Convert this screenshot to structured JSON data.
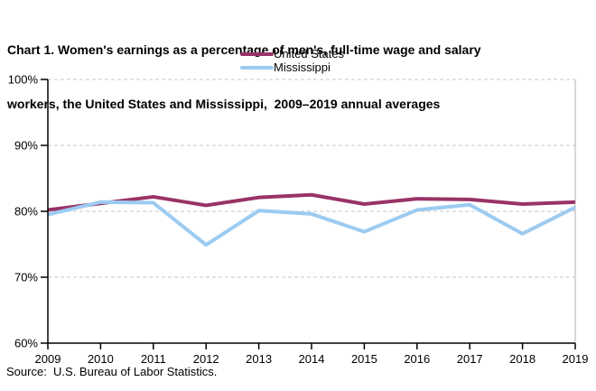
{
  "title": {
    "lines": [
      "Chart 1. Women's earnings as a percentage of men's, full-time wage and salary",
      "workers, the United States and Mississippi,  2009–2019 annual averages"
    ]
  },
  "source": "Source:  U.S. Bureau of Labor Statistics.",
  "colors": {
    "united_states_line": "#993366",
    "mississippi_line": "#9CCBF1",
    "gridline": "#C9C9C9",
    "axis": "#000000",
    "plot_right_border": "#B3B3B3",
    "text": "#000000"
  },
  "chart_data": {
    "type": "line",
    "title": "Chart 1. Women's earnings as a percentage of men's, full-time wage and salary workers, the United States and Mississippi, 2009–2019 annual averages",
    "x": [
      2009,
      2010,
      2011,
      2012,
      2013,
      2014,
      2015,
      2016,
      2017,
      2018,
      2019
    ],
    "xtick_labels": [
      "2009",
      "2010",
      "2011",
      "2012",
      "2013",
      "2014",
      "2015",
      "2016",
      "2017",
      "2018",
      "2019"
    ],
    "series": [
      {
        "name": "United States",
        "color": "#993366",
        "values": [
          80.2,
          81.2,
          82.2,
          80.9,
          82.1,
          82.5,
          81.1,
          81.9,
          81.8,
          81.1,
          81.4
        ]
      },
      {
        "name": "Mississippi",
        "color": "#9CCBF1",
        "values": [
          79.5,
          81.4,
          81.3,
          74.9,
          80.1,
          79.6,
          76.9,
          80.2,
          81.0,
          76.6,
          80.6
        ]
      }
    ],
    "xlabel": "",
    "ylabel": "",
    "ylim": [
      60,
      100
    ],
    "yticks": [
      60,
      70,
      80,
      90,
      100
    ],
    "ytick_labels": [
      "60%",
      "70%",
      "80%",
      "90%",
      "100%"
    ],
    "grid": "horizontal-dashed",
    "legend_position": "top-center"
  }
}
